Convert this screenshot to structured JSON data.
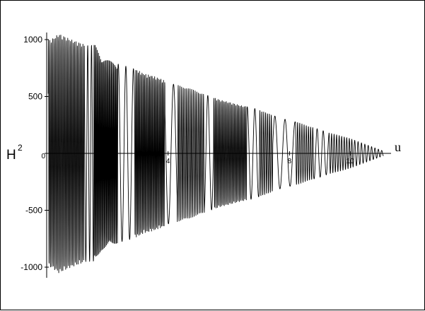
{
  "chart_data": {
    "type": "line",
    "title": "",
    "xlabel": "u",
    "ylabel": {
      "base": "H",
      "superscript": "2"
    },
    "x_ticks": [
      "2",
      "4",
      "8",
      "10"
    ],
    "y_ticks": [
      "1000",
      "500",
      "0",
      "-500",
      "-1000"
    ],
    "xlim": [
      0.0,
      11.3
    ],
    "ylim": [
      -1100,
      1100
    ],
    "grid": false,
    "legend": "none",
    "series": [
      {
        "name": "",
        "x": [
          0.15,
          0.4,
          0.8,
          1.3,
          1.6,
          1.8,
          2.0,
          2.2,
          2.4,
          2.7,
          3.0,
          3.2,
          3.5,
          3.8,
          4.0,
          4.3,
          4.7,
          5.0,
          5.4,
          5.7,
          6.0,
          6.4,
          6.8,
          7.0,
          7.2,
          7.5,
          7.7,
          8.0,
          8.3,
          8.6,
          9.0,
          9.3,
          9.6,
          10.0,
          10.2,
          10.5,
          10.7,
          10.9,
          11.1
        ],
        "y": [
          1000,
          1050,
          1000,
          950,
          950,
          850,
          820,
          800,
          780,
          760,
          730,
          700,
          680,
          650,
          620,
          600,
          570,
          540,
          500,
          470,
          450,
          420,
          400,
          380,
          360,
          330,
          310,
          290,
          270,
          240,
          210,
          180,
          160,
          130,
          110,
          80,
          60,
          40,
          20
        ],
        "style": "envelope-of-oscillation"
      }
    ],
    "colors": {
      "line": "#000000",
      "axis": "#000000",
      "background": "#ffffff"
    }
  }
}
